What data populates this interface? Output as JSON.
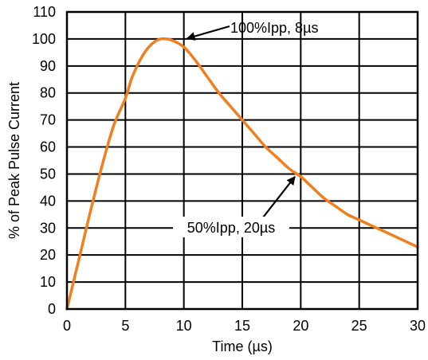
{
  "chart_data": {
    "type": "line",
    "title": "",
    "xlabel": "Time (µs)",
    "ylabel": "% of Peak Pulse Current",
    "xlim": [
      0,
      30
    ],
    "ylim": [
      0,
      110
    ],
    "x_ticks": [
      0,
      5,
      10,
      15,
      20,
      25,
      30
    ],
    "y_ticks": [
      0,
      10,
      20,
      30,
      40,
      50,
      60,
      70,
      80,
      90,
      100,
      110
    ],
    "grid": true,
    "line_color": "#f07f1e",
    "series": [
      {
        "x": [
          0,
          1,
          2,
          3,
          4,
          5,
          5.5,
          6,
          6.5,
          7,
          7.5,
          8,
          8.5,
          9,
          10,
          11,
          12,
          13,
          14,
          15,
          16,
          17,
          18,
          19,
          20,
          21,
          22,
          23,
          24,
          25,
          26,
          27,
          28,
          29,
          30
        ],
        "y": [
          0,
          18,
          36,
          53,
          68,
          78,
          85,
          90,
          94,
          97,
          99,
          100,
          100,
          99.5,
          97,
          92,
          86,
          80,
          75,
          70,
          65,
          60,
          56,
          52,
          49,
          45,
          41,
          38,
          35,
          33,
          31,
          29,
          27,
          25,
          23
        ]
      }
    ],
    "annotations": [
      {
        "text": "100%Ipp, 8µs",
        "point": [
          10,
          99
        ]
      },
      {
        "text": "50%Ipp, 20µs",
        "point": [
          19.5,
          49
        ]
      }
    ]
  }
}
